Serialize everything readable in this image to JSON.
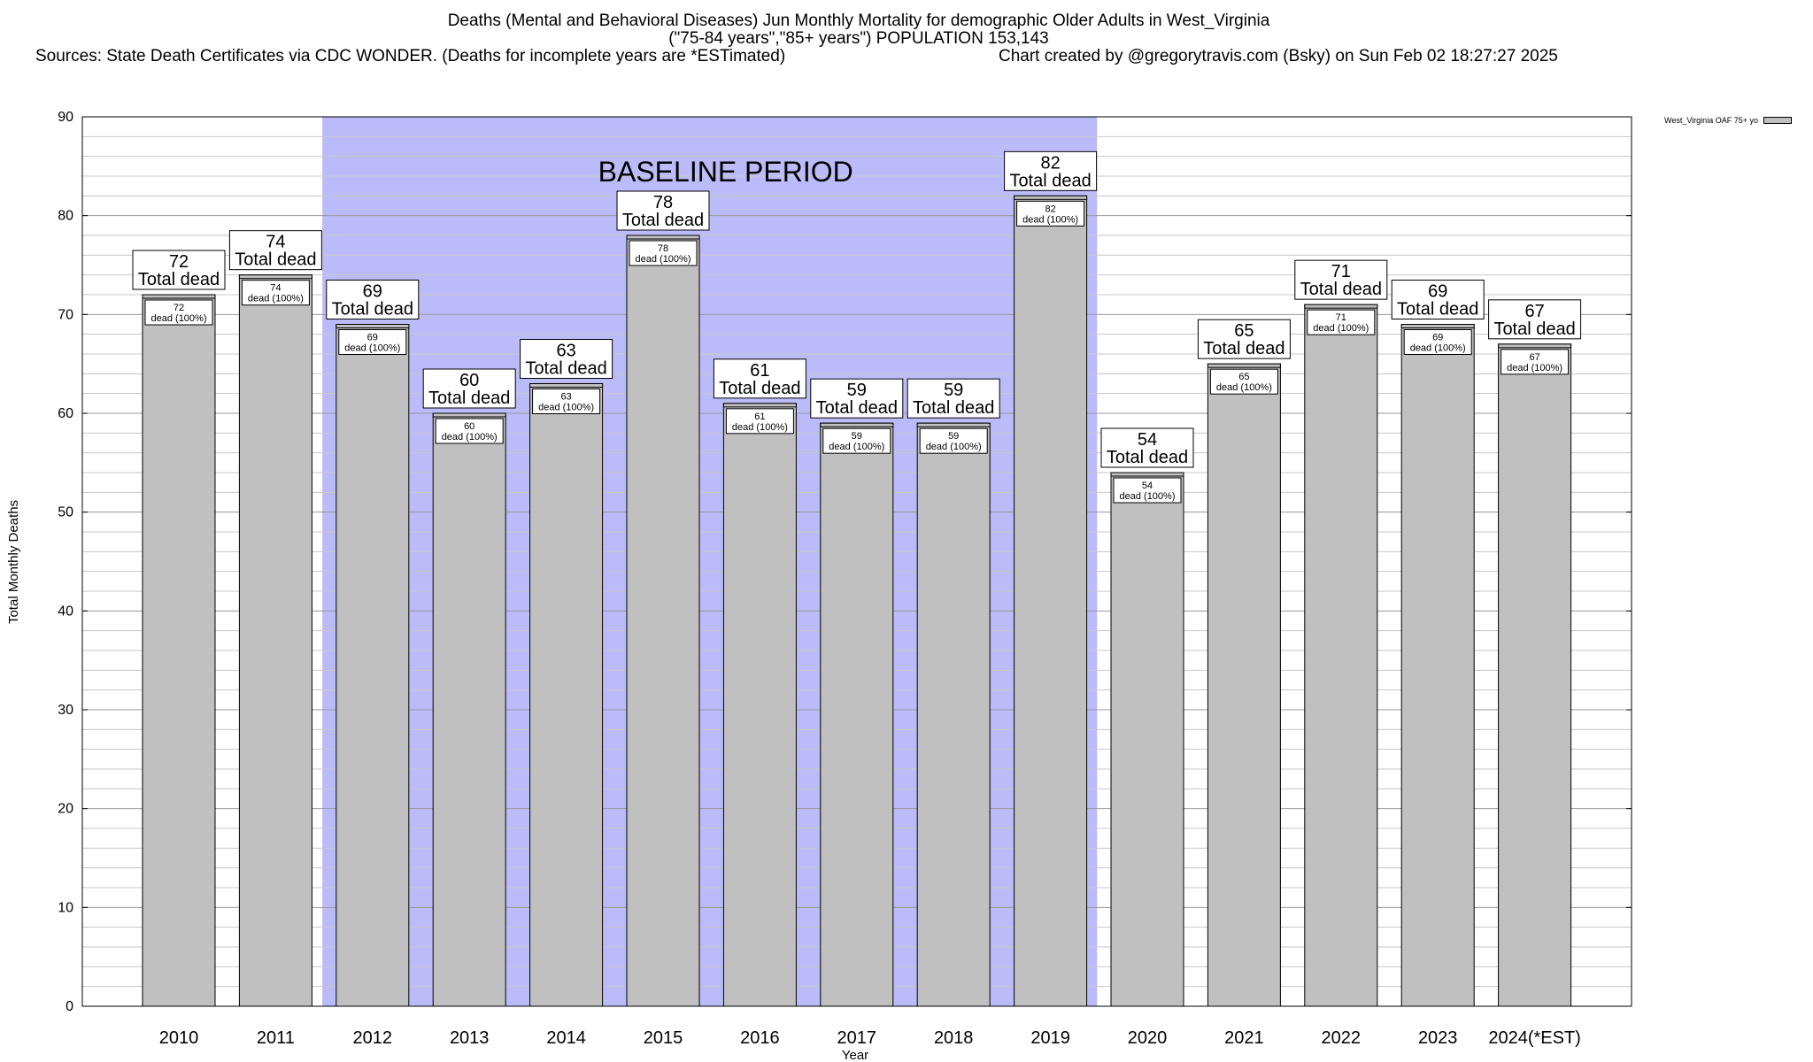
{
  "header": {
    "title_line1": "Deaths (Mental and Behavioral Diseases) Jun Monthly Mortality for demographic Older Adults in West_Virginia",
    "title_line2": "(\"75-84 years\",\"85+ years\") POPULATION 153,143",
    "sources": "Sources: State Death Certificates via CDC WONDER. (Deaths for incomplete years are *ESTimated)",
    "credit": "Chart created by @gregorytravis.com (Bsky) on Sun Feb 02 18:27:27 2025"
  },
  "legend": {
    "label": "West_Virginia OAF 75+ yo",
    "swatch_color": "#c0c0c0"
  },
  "chart_data": {
    "type": "bar",
    "title": "Deaths (Mental and Behavioral Diseases) Jun Monthly Mortality for demographic Older Adults in West_Virginia",
    "xlabel": "Year",
    "ylabel": "Total Monthly Deaths",
    "ylim": [
      0,
      90
    ],
    "yticks": [
      0,
      10,
      20,
      30,
      40,
      50,
      60,
      70,
      80,
      90
    ],
    "grid": true,
    "legend_position": "top-right",
    "categories": [
      "2010",
      "2011",
      "2012",
      "2013",
      "2014",
      "2015",
      "2016",
      "2017",
      "2018",
      "2019",
      "2020",
      "2021",
      "2022",
      "2023",
      "2024(*EST)"
    ],
    "series": [
      {
        "name": "West_Virginia OAF 75+ yo",
        "values": [
          72,
          74,
          69,
          60,
          63,
          78,
          61,
          59,
          59,
          82,
          54,
          65,
          71,
          69,
          67
        ]
      }
    ],
    "bar_color": "#c0c0c0",
    "total_label_suffix": "Total dead",
    "inner_label_suffix": "dead (100%)",
    "baseline_period": {
      "label": "BASELINE PERIOD",
      "from": "2012",
      "to": "2019",
      "color": "#bbbbf9"
    }
  }
}
